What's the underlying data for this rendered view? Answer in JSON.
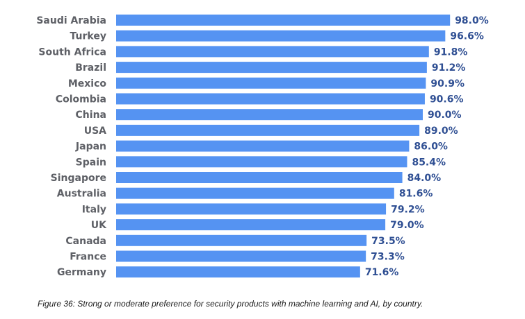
{
  "chart_data": {
    "type": "bar",
    "orientation": "horizontal",
    "categories": [
      "Saudi Arabia",
      "Turkey",
      "South Africa",
      "Brazil",
      "Mexico",
      "Colombia",
      "China",
      "USA",
      "Japan",
      "Spain",
      "Singapore",
      "Australia",
      "Italy",
      "UK",
      "Canada",
      "France",
      "Germany"
    ],
    "values": [
      98.0,
      96.6,
      91.8,
      91.2,
      90.9,
      90.6,
      90.0,
      89.0,
      86.0,
      85.4,
      84.0,
      81.6,
      79.2,
      79.0,
      73.5,
      73.3,
      71.6
    ],
    "value_labels": [
      "98.0%",
      "96.6%",
      "91.8%",
      "91.2%",
      "90.9%",
      "90.6%",
      "90.0%",
      "89.0%",
      "86.0%",
      "85.4%",
      "84.0%",
      "81.6%",
      "79.2%",
      "79.0%",
      "73.5%",
      "73.3%",
      "71.6%"
    ],
    "unit": "%",
    "xlim": [
      0,
      100
    ],
    "grid": false,
    "legend": "none",
    "bar_color": "#5593f2",
    "label_color": "#5e6066",
    "value_color": "#2f4f93",
    "title": "",
    "xlabel": "",
    "ylabel": ""
  },
  "caption": "Figure 36: Strong or moderate preference for security products with machine learning and AI, by country."
}
